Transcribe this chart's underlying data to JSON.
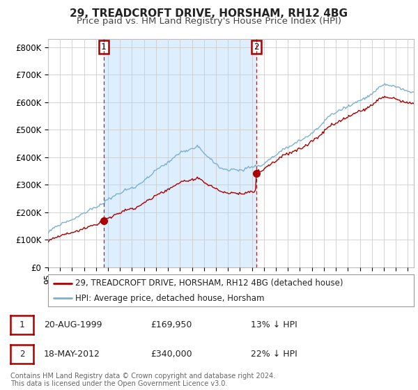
{
  "title": "29, TREADCROFT DRIVE, HORSHAM, RH12 4BG",
  "subtitle": "Price paid vs. HM Land Registry's House Price Index (HPI)",
  "ylabel_ticks": [
    "£0",
    "£100K",
    "£200K",
    "£300K",
    "£400K",
    "£500K",
    "£600K",
    "£700K",
    "£800K"
  ],
  "ytick_values": [
    0,
    100000,
    200000,
    300000,
    400000,
    500000,
    600000,
    700000,
    800000
  ],
  "ylim": [
    0,
    830000
  ],
  "xlim_start": 1995.0,
  "xlim_end": 2025.5,
  "red_color": "#aa0000",
  "blue_color": "#7ab0d4",
  "shade_color": "#ddeeff",
  "marker1_date": 1999.63,
  "marker1_value": 169950,
  "marker2_date": 2012.38,
  "marker2_value": 340000,
  "legend_label1": "29, TREADCROFT DRIVE, HORSHAM, RH12 4BG (detached house)",
  "legend_label2": "HPI: Average price, detached house, Horsham",
  "ann1_label": "1",
  "ann2_label": "2",
  "footer": "Contains HM Land Registry data © Crown copyright and database right 2024.\nThis data is licensed under the Open Government Licence v3.0.",
  "background_color": "#ffffff",
  "grid_color": "#cccccc",
  "title_fontsize": 11,
  "subtitle_fontsize": 9.5,
  "tick_fontsize": 8.5
}
